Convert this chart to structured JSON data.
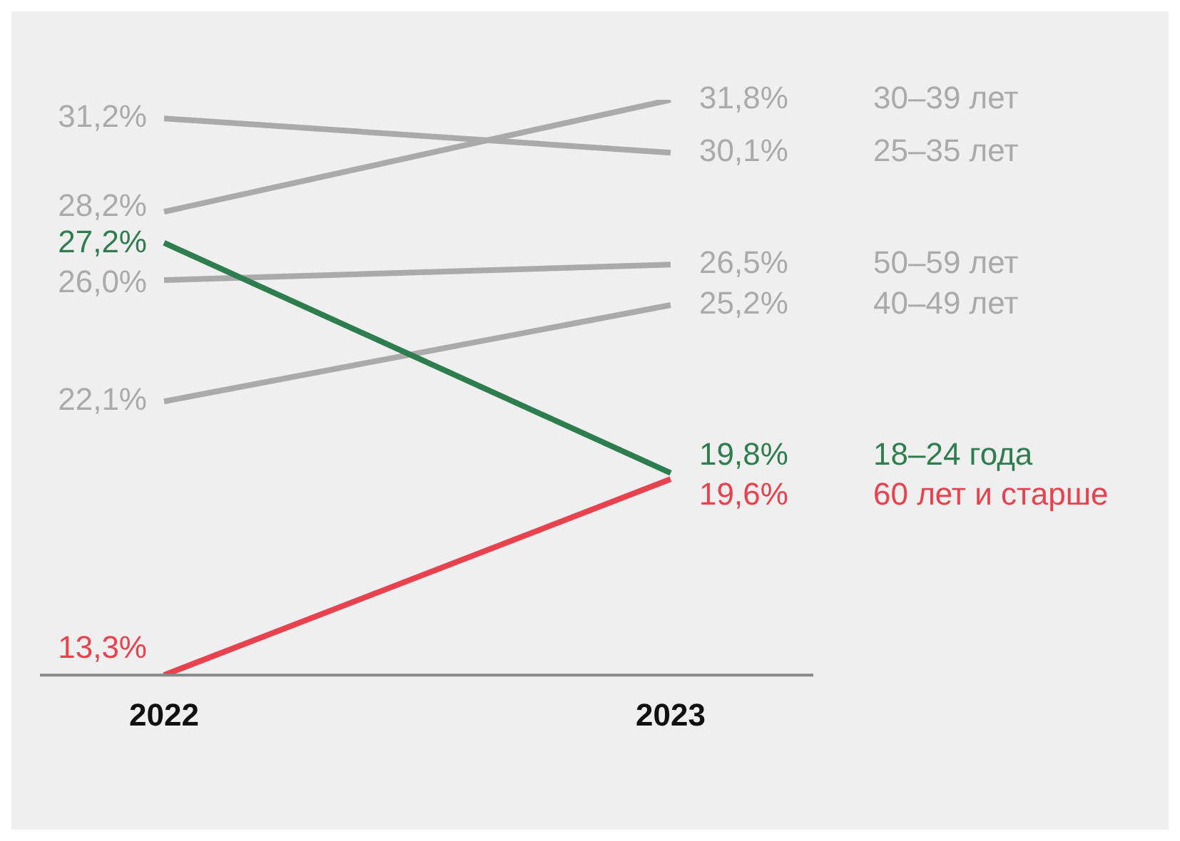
{
  "chart_data": {
    "type": "line",
    "categories": [
      "2022",
      "2023"
    ],
    "grid": false,
    "legend": false,
    "marker": "none",
    "tick_labels": "x",
    "series": [
      {
        "name": "25–35 лет",
        "color": "#aaaaaa",
        "values": [
          31.2,
          30.1
        ],
        "value_labels": [
          "31,2%",
          "30,1%"
        ]
      },
      {
        "name": "30–39 лет",
        "color": "#aaaaaa",
        "values": [
          28.2,
          31.8
        ],
        "value_labels": [
          "28,2%",
          "31,8%"
        ]
      },
      {
        "name": "18–24 года",
        "color": "#2e7d4f",
        "values": [
          27.2,
          19.8
        ],
        "value_labels": [
          "27,2%",
          "19,8%"
        ]
      },
      {
        "name": "50–59 лет",
        "color": "#aaaaaa",
        "values": [
          26.0,
          26.5
        ],
        "value_labels": [
          "26,0%",
          "26,5%"
        ]
      },
      {
        "name": "40–49 лет",
        "color": "#aaaaaa",
        "values": [
          22.1,
          25.2
        ],
        "value_labels": [
          "22,1%",
          "25,2%"
        ]
      },
      {
        "name": "60 лет и старше",
        "color": "#e8424f",
        "values": [
          13.3,
          19.6
        ],
        "value_labels": [
          "13,3%",
          "19,6%"
        ]
      }
    ]
  }
}
